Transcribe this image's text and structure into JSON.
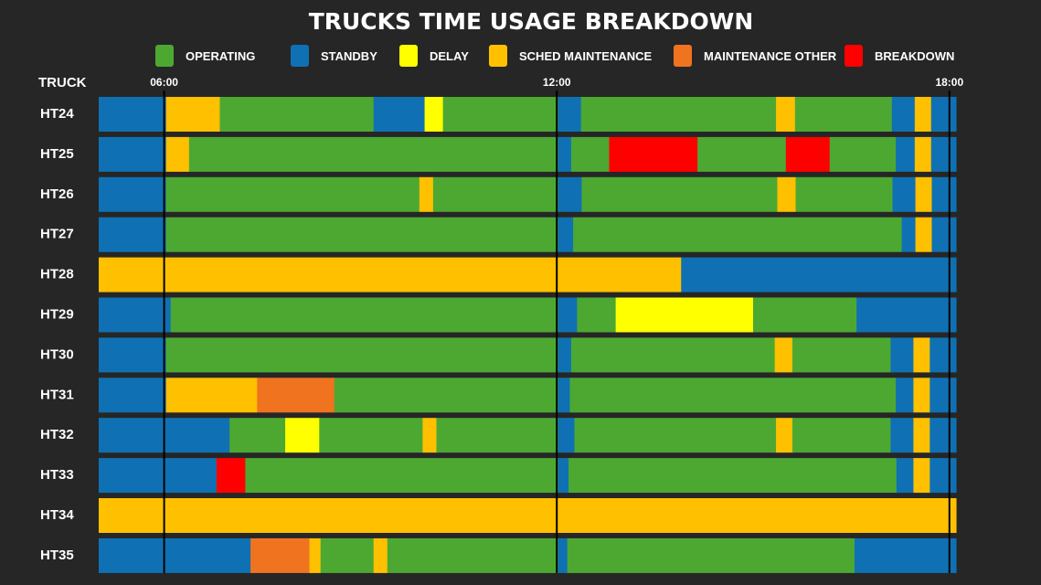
{
  "chart_data": {
    "type": "bar",
    "orientation": "horizontal-stacked-timeline",
    "title": "TRUCKS TIME USAGE BREAKDOWN",
    "ylabel": "TRUCK",
    "x_ticks": [
      "06:00",
      "12:00",
      "18:00"
    ],
    "legend": [
      {
        "key": "operating",
        "label": "OPERATING",
        "color": "#4da832"
      },
      {
        "key": "standby",
        "label": "STANDBY",
        "color": "#0f71b3"
      },
      {
        "key": "delay",
        "label": "DELAY",
        "color": "#ffff00"
      },
      {
        "key": "sched",
        "label": "SCHED MAINTENANCE",
        "color": "#ffc000"
      },
      {
        "key": "maint_other",
        "label": "MAINTENANCE OTHER",
        "color": "#f07320"
      },
      {
        "key": "breakdown",
        "label": "BREAKDOWN",
        "color": "#ff0000"
      }
    ],
    "rows": [
      {
        "truck": "HT24",
        "segments": [
          [
            "standby",
            5.0,
            6.03
          ],
          [
            "sched",
            6.03,
            6.85
          ],
          [
            "operating",
            6.85,
            9.2
          ],
          [
            "standby",
            9.2,
            9.98
          ],
          [
            "delay",
            9.98,
            10.26
          ],
          [
            "operating",
            10.26,
            12.02
          ],
          [
            "standby",
            12.02,
            12.37
          ],
          [
            "operating",
            12.37,
            15.35
          ],
          [
            "sched",
            15.35,
            15.64
          ],
          [
            "operating",
            15.64,
            17.12
          ],
          [
            "standby",
            17.12,
            17.47
          ],
          [
            "sched",
            17.47,
            17.72
          ],
          [
            "standby",
            17.72,
            18.1
          ]
        ]
      },
      {
        "truck": "HT25",
        "segments": [
          [
            "standby",
            5.0,
            6.03
          ],
          [
            "sched",
            6.03,
            6.38
          ],
          [
            "operating",
            6.38,
            12.02
          ],
          [
            "standby",
            12.02,
            12.22
          ],
          [
            "operating",
            12.22,
            12.8
          ],
          [
            "breakdown",
            12.8,
            14.15
          ],
          [
            "operating",
            14.15,
            15.5
          ],
          [
            "breakdown",
            15.5,
            16.17
          ],
          [
            "operating",
            16.17,
            17.18
          ],
          [
            "standby",
            17.18,
            17.47
          ],
          [
            "sched",
            17.47,
            17.72
          ],
          [
            "standby",
            17.72,
            18.1
          ]
        ]
      },
      {
        "truck": "HT26",
        "segments": [
          [
            "standby",
            5.0,
            6.03
          ],
          [
            "operating",
            6.03,
            9.9
          ],
          [
            "sched",
            9.9,
            10.11
          ],
          [
            "operating",
            10.11,
            12.02
          ],
          [
            "standby",
            12.02,
            12.38
          ],
          [
            "operating",
            12.38,
            15.37
          ],
          [
            "sched",
            15.37,
            15.65
          ],
          [
            "operating",
            15.65,
            17.13
          ],
          [
            "standby",
            17.13,
            17.48
          ],
          [
            "sched",
            17.48,
            17.73
          ],
          [
            "standby",
            17.73,
            18.1
          ]
        ]
      },
      {
        "truck": "HT27",
        "segments": [
          [
            "standby",
            5.0,
            6.03
          ],
          [
            "operating",
            6.03,
            12.02
          ],
          [
            "standby",
            12.02,
            12.25
          ],
          [
            "operating",
            12.25,
            17.27
          ],
          [
            "standby",
            17.27,
            17.48
          ],
          [
            "sched",
            17.48,
            17.73
          ],
          [
            "standby",
            17.73,
            18.1
          ]
        ]
      },
      {
        "truck": "HT28",
        "segments": [
          [
            "sched",
            5.0,
            13.9
          ],
          [
            "standby",
            13.9,
            18.1
          ]
        ]
      },
      {
        "truck": "HT29",
        "segments": [
          [
            "standby",
            5.0,
            6.1
          ],
          [
            "operating",
            6.1,
            12.02
          ],
          [
            "standby",
            12.02,
            12.31
          ],
          [
            "operating",
            12.31,
            12.9
          ],
          [
            "delay",
            12.9,
            15.0
          ],
          [
            "operating",
            15.0,
            16.58
          ],
          [
            "standby",
            16.58,
            18.1
          ]
        ]
      },
      {
        "truck": "HT30",
        "segments": [
          [
            "standby",
            5.0,
            6.03
          ],
          [
            "operating",
            6.03,
            12.02
          ],
          [
            "standby",
            12.02,
            12.22
          ],
          [
            "operating",
            12.22,
            15.33
          ],
          [
            "sched",
            15.33,
            15.6
          ],
          [
            "operating",
            15.6,
            17.1
          ],
          [
            "standby",
            17.1,
            17.45
          ],
          [
            "sched",
            17.45,
            17.7
          ],
          [
            "standby",
            17.7,
            18.1
          ]
        ]
      },
      {
        "truck": "HT31",
        "segments": [
          [
            "standby",
            5.0,
            6.03
          ],
          [
            "sched",
            6.03,
            7.42
          ],
          [
            "maint_other",
            7.42,
            8.6
          ],
          [
            "operating",
            8.6,
            12.02
          ],
          [
            "standby",
            12.02,
            12.2
          ],
          [
            "operating",
            12.2,
            17.18
          ],
          [
            "standby",
            17.18,
            17.45
          ],
          [
            "sched",
            17.45,
            17.7
          ],
          [
            "standby",
            17.7,
            18.1
          ]
        ]
      },
      {
        "truck": "HT32",
        "segments": [
          [
            "standby",
            5.0,
            7.0
          ],
          [
            "operating",
            7.0,
            7.85
          ],
          [
            "delay",
            7.85,
            8.37
          ],
          [
            "operating",
            8.37,
            9.95
          ],
          [
            "sched",
            9.95,
            10.16
          ],
          [
            "operating",
            10.16,
            12.02
          ],
          [
            "standby",
            12.02,
            12.27
          ],
          [
            "operating",
            12.27,
            15.35
          ],
          [
            "sched",
            15.35,
            15.6
          ],
          [
            "operating",
            15.6,
            17.1
          ],
          [
            "standby",
            17.1,
            17.45
          ],
          [
            "sched",
            17.45,
            17.7
          ],
          [
            "standby",
            17.7,
            18.1
          ]
        ]
      },
      {
        "truck": "HT33",
        "segments": [
          [
            "standby",
            5.0,
            6.8
          ],
          [
            "breakdown",
            6.8,
            7.24
          ],
          [
            "operating",
            7.24,
            12.02
          ],
          [
            "standby",
            12.02,
            12.18
          ],
          [
            "operating",
            12.18,
            17.19
          ],
          [
            "standby",
            17.19,
            17.45
          ],
          [
            "sched",
            17.45,
            17.7
          ],
          [
            "standby",
            17.7,
            18.1
          ]
        ]
      },
      {
        "truck": "HT34",
        "segments": [
          [
            "sched",
            5.0,
            18.1
          ]
        ]
      },
      {
        "truck": "HT35",
        "segments": [
          [
            "standby",
            5.0,
            7.32
          ],
          [
            "maint_other",
            7.32,
            8.22
          ],
          [
            "sched",
            8.22,
            8.39
          ],
          [
            "operating",
            8.39,
            9.2
          ],
          [
            "sched",
            9.2,
            9.41
          ],
          [
            "operating",
            9.41,
            12.02
          ],
          [
            "standby",
            12.02,
            12.16
          ],
          [
            "operating",
            12.16,
            16.55
          ],
          [
            "standby",
            16.55,
            18.1
          ]
        ]
      }
    ]
  }
}
